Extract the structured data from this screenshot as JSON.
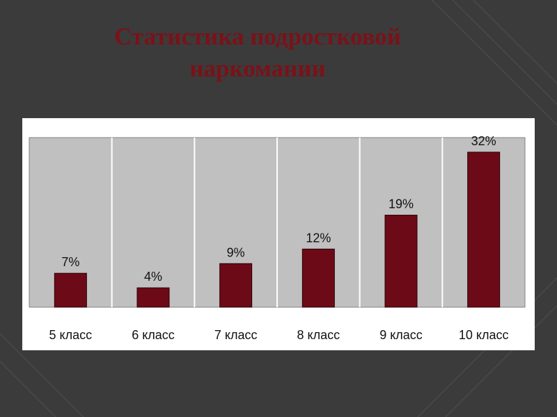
{
  "slide": {
    "title_line1": "Статистика подростковой",
    "title_line2": "наркомании"
  },
  "colors": {
    "background": "#3b3b3b",
    "title": "#7a1219",
    "bar": "#6d0a17",
    "plot_area": "#c0c0c0",
    "frame": "#ffffff"
  },
  "chart_data": {
    "type": "bar",
    "categories": [
      "5 класс",
      "6 класс",
      "7 класс",
      "8 класс",
      "9 класс",
      "10 класс"
    ],
    "values": [
      7,
      4,
      9,
      12,
      19,
      32
    ],
    "data_labels": [
      "7%",
      "4%",
      "9%",
      "12%",
      "19%",
      "32%"
    ],
    "ylim": [
      0,
      35
    ],
    "grid": "vertical category separators",
    "legend": "none",
    "xlabel": "",
    "ylabel": ""
  }
}
